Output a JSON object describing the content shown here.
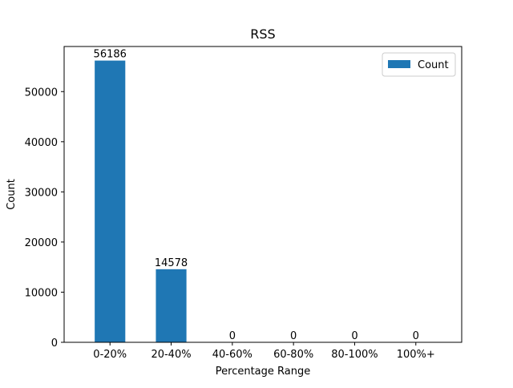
{
  "chart_data": {
    "type": "bar",
    "title": "RSS",
    "xlabel": "Percentage Range",
    "ylabel": "Count",
    "categories": [
      "0-20%",
      "20-40%",
      "40-60%",
      "60-80%",
      "80-100%",
      "100%+"
    ],
    "series": [
      {
        "name": "Count",
        "values": [
          56186,
          14578,
          0,
          0,
          0,
          0
        ],
        "color": "#1f77b4"
      }
    ],
    "ylim": [
      0,
      58995
    ],
    "yticks": [
      0,
      10000,
      20000,
      30000,
      40000,
      50000
    ],
    "data_labels": [
      "56186",
      "14578",
      "0",
      "0",
      "0",
      "0"
    ],
    "legend": {
      "position": "top-right",
      "label": "Count"
    },
    "grid": false
  }
}
